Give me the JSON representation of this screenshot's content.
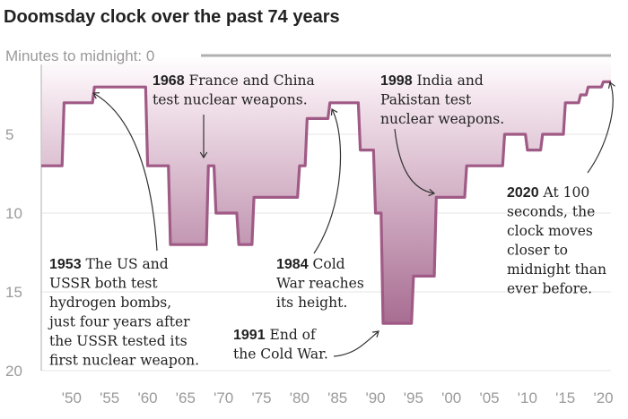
{
  "title": "Doomsday clock over the past 74 years",
  "chart_data": {
    "type": "area",
    "title": "Doomsday clock over the past 74 years",
    "ylabel": "Minutes to midnight: 0",
    "ylim": [
      0,
      20
    ],
    "y_inverted": true,
    "xlim": [
      1946,
      2021
    ],
    "yticks": [
      0,
      5,
      10,
      15,
      20
    ],
    "xticks": [
      1950,
      1955,
      1960,
      1965,
      1970,
      1975,
      1980,
      1985,
      1990,
      1995,
      2000,
      2005,
      2010,
      2015,
      2020
    ],
    "xtick_labels": [
      "'50",
      "'55",
      "'60",
      "'65",
      "'70",
      "'75",
      "'80",
      "'85",
      "'90",
      "'95",
      "'00",
      "'05",
      "'10",
      "'15",
      "'20"
    ],
    "ytick_labels": [
      "5",
      "10",
      "15",
      "20"
    ],
    "colors": {
      "line": "#a05a86",
      "fill_top": "#ffffff",
      "fill_bottom": "#a86d92",
      "axis": "#c8c8c8"
    },
    "points": [
      {
        "x": 1947,
        "y": 7
      },
      {
        "x": 1949,
        "y": 3
      },
      {
        "x": 1953,
        "y": 2
      },
      {
        "x": 1960,
        "y": 7
      },
      {
        "x": 1963,
        "y": 12
      },
      {
        "x": 1968,
        "y": 7
      },
      {
        "x": 1969,
        "y": 10
      },
      {
        "x": 1972,
        "y": 12
      },
      {
        "x": 1974,
        "y": 9
      },
      {
        "x": 1980,
        "y": 7
      },
      {
        "x": 1981,
        "y": 4
      },
      {
        "x": 1984,
        "y": 3
      },
      {
        "x": 1988,
        "y": 6
      },
      {
        "x": 1990,
        "y": 10
      },
      {
        "x": 1991,
        "y": 17
      },
      {
        "x": 1995,
        "y": 14
      },
      {
        "x": 1998,
        "y": 9
      },
      {
        "x": 2002,
        "y": 7
      },
      {
        "x": 2007,
        "y": 5
      },
      {
        "x": 2010,
        "y": 6
      },
      {
        "x": 2012,
        "y": 5
      },
      {
        "x": 2015,
        "y": 3
      },
      {
        "x": 2017,
        "y": 2.5
      },
      {
        "x": 2018,
        "y": 2
      },
      {
        "x": 2020,
        "y": 1.67
      },
      {
        "x": 2021,
        "y": 1.67
      }
    ],
    "annotations": [
      {
        "id": "a1968",
        "year": "1968",
        "lines": [
          "France and China",
          "test nuclear weapons."
        ]
      },
      {
        "id": "a1998",
        "year": "1998",
        "lines": [
          "India and",
          "Pakistan test",
          "nuclear weapons."
        ]
      },
      {
        "id": "a1953",
        "year": "1953",
        "lines": [
          "The US and",
          "USSR both test",
          "hydrogen bombs,",
          "just four years after",
          "the USSR tested its",
          "first nuclear weapon."
        ]
      },
      {
        "id": "a1984",
        "year": "1984",
        "lines": [
          "Cold",
          "War reaches",
          "its height."
        ]
      },
      {
        "id": "a1991",
        "year": "1991",
        "lines": [
          "End of",
          "the Cold War."
        ]
      },
      {
        "id": "a2020",
        "year": "2020",
        "lines": [
          "At 100",
          "seconds, the",
          "clock moves",
          "closer to",
          "midnight than",
          "ever before."
        ]
      }
    ]
  }
}
